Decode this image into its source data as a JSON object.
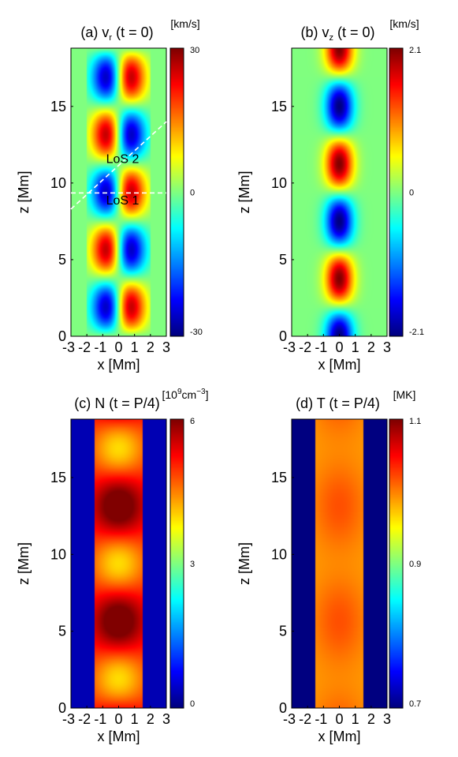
{
  "chart_data": [
    {
      "id": "a",
      "type": "heatmap",
      "title": "(a) v",
      "title_sub": "r",
      "title_suffix": " (t = 0)",
      "unit": "[km/s]",
      "xlabel": "x [Mm]",
      "ylabel": "z [Mm]",
      "xlim": [
        -3,
        3
      ],
      "ylim": [
        0,
        18.8
      ],
      "xticks": [
        -3,
        -2,
        -1,
        0,
        1,
        2,
        3
      ],
      "yticks": [
        0,
        5,
        10,
        15
      ],
      "colorbar": {
        "range": [
          -30,
          30
        ],
        "ticks": [
          "30",
          "0",
          "-30"
        ],
        "colormap": "jet"
      },
      "field": {
        "kind": "vr",
        "amplitude": 30,
        "radius_Mm": 1.5,
        "wavelength_Mm": 7.5,
        "bands_z_Mm": [
          1.9,
          5.65,
          9.4,
          13.15,
          16.9
        ]
      },
      "annotations": [
        {
          "text": "LoS 2",
          "x": 0.7,
          "z": 11.3
        },
        {
          "text": "LoS 1",
          "x": 0.7,
          "z": 8.6
        }
      ],
      "lines": [
        {
          "name": "LoS 1",
          "x": [
            -3,
            3
          ],
          "z": [
            9.35,
            9.35
          ]
        },
        {
          "name": "LoS 2",
          "x": [
            -3,
            3
          ],
          "z": [
            8.3,
            14.0
          ]
        }
      ]
    },
    {
      "id": "b",
      "type": "heatmap",
      "title": "(b) v",
      "title_sub": "z",
      "title_suffix": " (t = 0)",
      "unit": "[km/s]",
      "xlabel": "x [Mm]",
      "ylabel": "z [Mm]",
      "xlim": [
        -3,
        3
      ],
      "ylim": [
        0,
        18.8
      ],
      "xticks": [
        -3,
        -2,
        -1,
        0,
        1,
        2,
        3
      ],
      "yticks": [
        0,
        5,
        10,
        15
      ],
      "colorbar": {
        "range": [
          -2.1,
          2.1
        ],
        "ticks": [
          "2.1",
          "0",
          "-2.1"
        ],
        "colormap": "jet"
      },
      "field": {
        "kind": "vz",
        "amplitude": 2.1,
        "radius_Mm": 1.5,
        "wavelength_Mm": 7.5,
        "max_z_Mm": [
          3.75,
          11.25,
          18.75
        ],
        "min_z_Mm": [
          0,
          7.5,
          15
        ]
      }
    },
    {
      "id": "c",
      "type": "heatmap",
      "title": "(c) N (t = P/4)",
      "unit_base": "[10",
      "unit_sup": "9",
      "unit_mid": "cm",
      "unit_sup2": "−3",
      "unit_end": "]",
      "xlabel": "x [Mm]",
      "ylabel": "z [Mm]",
      "xlim": [
        -3,
        3
      ],
      "ylim": [
        0,
        18.8
      ],
      "xticks": [
        -3,
        -2,
        -1,
        0,
        1,
        2,
        3
      ],
      "yticks": [
        0,
        5,
        10,
        15
      ],
      "colorbar": {
        "range": [
          0,
          6
        ],
        "ticks": [
          "6",
          "3",
          "0"
        ],
        "colormap": "jet"
      },
      "field": {
        "kind": "density",
        "inside": 5.1,
        "outside": 0.3,
        "radius_Mm": 1.5,
        "wavelength_Mm": 7.5,
        "modulation": 0.4,
        "peak_z_Mm": [
          5.65,
          13.15
        ]
      }
    },
    {
      "id": "d",
      "type": "heatmap",
      "title": "(d) T (t = P/4)",
      "unit": "[MK]",
      "xlabel": "x [Mm]",
      "ylabel": "z [Mm]",
      "xlim": [
        -3,
        3
      ],
      "ylim": [
        0,
        18.8
      ],
      "xticks": [
        -3,
        -2,
        -1,
        0,
        1,
        2,
        3
      ],
      "yticks": [
        0,
        5,
        10,
        15
      ],
      "colorbar": {
        "range": [
          0.7,
          1.1
        ],
        "ticks": [
          "1.1",
          "0.9",
          "0.7"
        ],
        "colormap": "jet"
      },
      "field": {
        "kind": "temperature",
        "inside": 1.0,
        "outside": 0.7,
        "radius_Mm": 1.5,
        "wavelength_Mm": 7.5,
        "modulation": 0.055,
        "peak_z_Mm": [
          5.65,
          13.15
        ]
      }
    }
  ],
  "colors": {
    "los_line": "#ffffff",
    "axis": "#000000",
    "background": "#ffffff"
  }
}
